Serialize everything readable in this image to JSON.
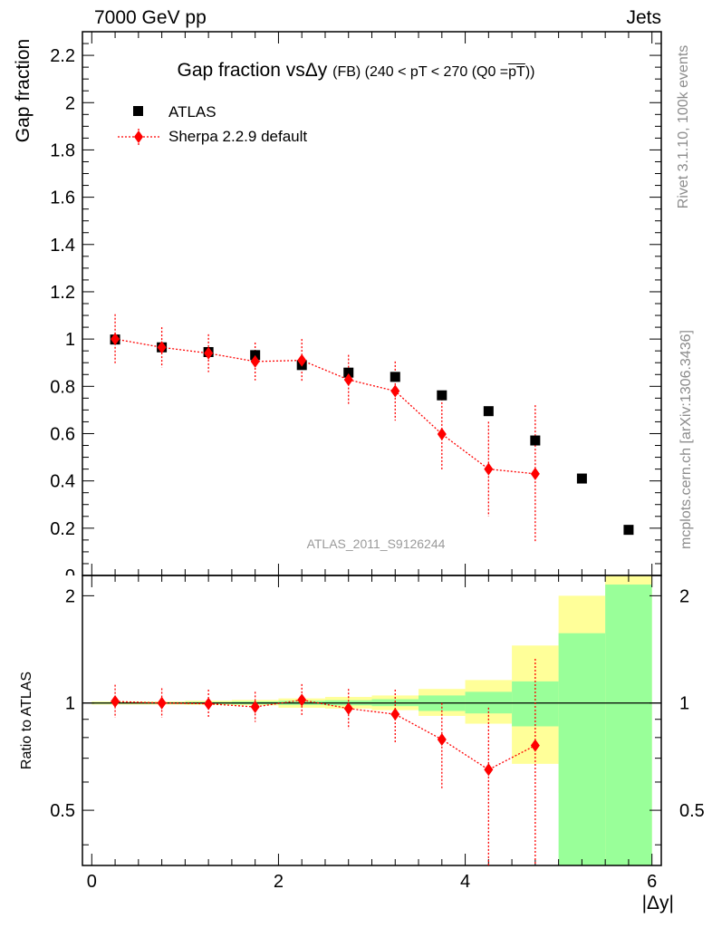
{
  "header": {
    "left_label": "7000 GeV pp",
    "right_label": "Jets"
  },
  "title": {
    "main": "Gap fraction vsΔy",
    "detail": "(FB) (240 < pT < 270 (Q0 =",
    "overline": "pT",
    "close": "))"
  },
  "side_labels": {
    "rivet": "Rivet 3.1.10,  100k events",
    "mcplots": "mcplots.cern.ch [arXiv:1306.3436]"
  },
  "analysis_label": "ATLAS_2011_S9126244",
  "legend": {
    "atlas": "ATLAS",
    "sherpa": "Sherpa 2.2.9 default"
  },
  "colors": {
    "data": "#000000",
    "mc": "#ff0000",
    "band_inner": "#99ff99",
    "band_outer": "#ffff99",
    "analysis_text": "#9a9a9a"
  },
  "chart_data": [
    {
      "type": "scatter",
      "panel": "main",
      "ylabel": "Gap fraction",
      "xlim": [
        -0.1,
        6.1
      ],
      "ylim": [
        0,
        2.3
      ],
      "yticks": [
        0.2,
        0.4,
        0.6,
        0.8,
        1,
        1.2,
        1.4,
        1.6,
        1.8,
        2,
        2.2
      ],
      "series": [
        {
          "name": "ATLAS",
          "marker": "square",
          "x": [
            0.25,
            0.75,
            1.25,
            1.75,
            2.25,
            2.75,
            3.25,
            3.75,
            4.25,
            4.75,
            5.25,
            5.75
          ],
          "y": [
            0.998,
            0.965,
            0.945,
            0.932,
            0.89,
            0.858,
            0.84,
            0.762,
            0.695,
            0.571,
            0.41,
            0.193
          ]
        },
        {
          "name": "Sherpa 2.2.9 default",
          "marker": "diamond",
          "x": [
            0.25,
            0.75,
            1.25,
            1.75,
            2.25,
            2.75,
            3.25,
            3.75,
            4.25,
            4.75
          ],
          "y": [
            1.0,
            0.965,
            0.94,
            0.905,
            0.91,
            0.828,
            0.78,
            0.598,
            0.45,
            0.43
          ],
          "err": [
            0.105,
            0.085,
            0.08,
            0.08,
            0.09,
            0.105,
            0.125,
            0.15,
            0.2,
            0.29
          ]
        }
      ]
    },
    {
      "type": "scatter",
      "panel": "ratio",
      "ylabel": "Ratio to ATLAS",
      "xlabel": "|Δy|",
      "xlim": [
        -0.1,
        6.1
      ],
      "ylim": [
        0.35,
        2.28
      ],
      "yticks": [
        0.5,
        1,
        2
      ],
      "xticks": [
        0,
        2,
        4,
        6
      ],
      "band_edges": [
        0,
        0.5,
        1,
        1.5,
        2,
        2.5,
        3,
        3.5,
        4,
        4.5,
        5,
        5.5,
        6
      ],
      "band_inner_low": [
        0.995,
        0.995,
        0.994,
        0.992,
        0.988,
        0.985,
        0.98,
        0.95,
        0.935,
        0.86,
        0.3,
        0.3
      ],
      "band_inner_high": [
        1.005,
        1.005,
        1.007,
        1.01,
        1.015,
        1.018,
        1.025,
        1.05,
        1.075,
        1.15,
        1.57,
        2.15
      ],
      "band_outer_low": [
        0.99,
        0.99,
        0.988,
        0.985,
        0.97,
        0.965,
        0.955,
        0.92,
        0.875,
        0.675,
        0.56,
        0.3
      ],
      "band_outer_high": [
        1.01,
        1.01,
        1.015,
        1.02,
        1.03,
        1.04,
        1.05,
        1.095,
        1.16,
        1.45,
        2.0,
        2.4
      ],
      "series": [
        {
          "name": "Sherpa 2.2.9 default",
          "x": [
            0.25,
            0.75,
            1.25,
            1.75,
            2.25,
            2.75,
            3.25,
            3.75,
            4.25,
            4.75
          ],
          "y": [
            1.01,
            1.0,
            0.995,
            0.975,
            1.02,
            0.965,
            0.93,
            0.79,
            0.65,
            0.76
          ],
          "err_low": [
            0.1,
            0.09,
            0.085,
            0.09,
            0.1,
            0.12,
            0.16,
            0.22,
            0.35,
            0.45
          ],
          "err_high": [
            0.115,
            0.1,
            0.095,
            0.1,
            0.11,
            0.13,
            0.16,
            0.21,
            0.32,
            0.57
          ]
        }
      ]
    }
  ]
}
